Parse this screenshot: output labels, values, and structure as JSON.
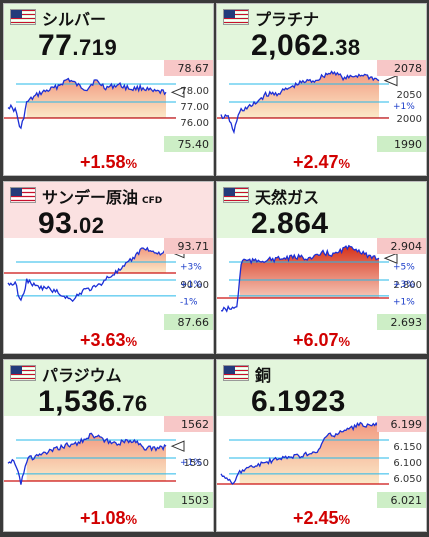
{
  "colors": {
    "up_bg": "#e3f6dc",
    "down_bg": "#fbe1e1",
    "change_color": "#d10000",
    "line": "#1c2fd6",
    "baseline": "#cc1111",
    "gridline": "#26b9ea",
    "hi_box": "#f7c7c7",
    "lo_box": "#cdeec6"
  },
  "cards": [
    {
      "name": "シルバー",
      "sub": "",
      "price_int": "77",
      "price_dec": ".719",
      "change": "+1.58",
      "pct_sign": "%",
      "high": "78.67",
      "low": "75.40",
      "ticks": [
        "78.00",
        "77.00",
        "76.00"
      ],
      "pct_labels": [],
      "top_bg": "#e3f6dc"
    },
    {
      "name": "プラチナ",
      "sub": "",
      "price_int": "2,062",
      "price_dec": ".38",
      "change": "+2.47",
      "pct_sign": "%",
      "high": "2078",
      "low": "1990",
      "ticks": [
        "2050",
        "2000"
      ],
      "pct_labels": [
        "+1%"
      ],
      "top_bg": "#e3f6dc"
    },
    {
      "name": "サンデー原油",
      "sub": "CFD",
      "price_int": "93",
      "price_dec": ".02",
      "change": "+3.63",
      "pct_sign": "%",
      "high": "93.71",
      "low": "87.66",
      "ticks": [
        "90.00"
      ],
      "pct_labels": [
        "+3%",
        "+1%",
        "-1%"
      ],
      "top_bg": "#fbe1e1"
    },
    {
      "name": "天然ガス",
      "sub": "",
      "price_int": "2.864",
      "price_dec": "",
      "change": "+6.07",
      "pct_sign": "%",
      "high": "2.904",
      "low": "2.693",
      "ticks": [
        "2.800"
      ],
      "pct_labels": [
        "+5%",
        "+3%",
        "+1%"
      ],
      "top_bg": "#e3f6dc"
    },
    {
      "name": "パラジウム",
      "sub": "",
      "price_int": "1,536",
      "price_dec": ".76",
      "change": "+1.08",
      "pct_sign": "%",
      "high": "1562",
      "low": "1503",
      "ticks": [
        "1550"
      ],
      "pct_labels": [
        "+1%"
      ],
      "top_bg": "#e3f6dc"
    },
    {
      "name": "銅",
      "sub": "",
      "price_int": "6.1923",
      "price_dec": "",
      "change": "+2.45",
      "pct_sign": "%",
      "high": "6.199",
      "low": "6.021",
      "ticks": [
        "6.150",
        "6.100",
        "6.050"
      ],
      "pct_labels": [],
      "top_bg": "#e3f6dc"
    }
  ]
}
